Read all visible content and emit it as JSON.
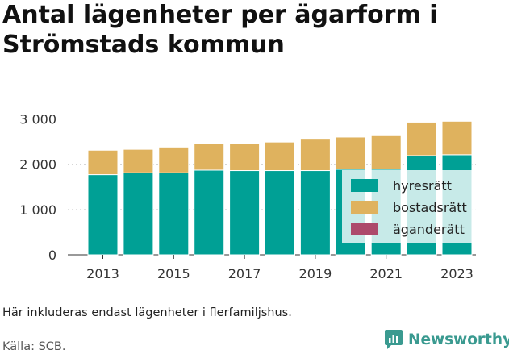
{
  "title": "Antal lägenheter per ägarform i Strömstads kommun",
  "note": "Här inkluderas endast lägenheter i flerfamiljshus.",
  "source": "Källa: SCB.",
  "brand": {
    "name": "Newsworthy",
    "icon": "newsworthy-logo-icon",
    "color": "#3a9a90"
  },
  "chart_data": {
    "type": "bar",
    "stacked": true,
    "categories": [
      "2013",
      "2014",
      "2015",
      "2016",
      "2017",
      "2018",
      "2019",
      "2020",
      "2021",
      "2022",
      "2023"
    ],
    "x_tick_labels": [
      "2013",
      "2015",
      "2017",
      "2019",
      "2021",
      "2023"
    ],
    "series": [
      {
        "name": "hyresrätt",
        "color": "#00a095",
        "values": [
          1770,
          1810,
          1810,
          1870,
          1860,
          1860,
          1860,
          1890,
          1890,
          2190,
          2210
        ]
      },
      {
        "name": "bostadsrätt",
        "color": "#dfb25e",
        "values": [
          540,
          520,
          570,
          580,
          590,
          630,
          710,
          710,
          740,
          740,
          740
        ]
      },
      {
        "name": "äganderätt",
        "color": "#ad4a6b",
        "values": [
          0,
          0,
          0,
          0,
          0,
          0,
          0,
          0,
          0,
          0,
          0
        ]
      }
    ],
    "yticks": [
      0,
      1000,
      2000,
      3000
    ],
    "ytick_labels": [
      "0",
      "1 000",
      "2 000",
      "3 000"
    ],
    "ylim": [
      0,
      3000
    ],
    "grid": true,
    "legend_position": "bottom-right"
  }
}
